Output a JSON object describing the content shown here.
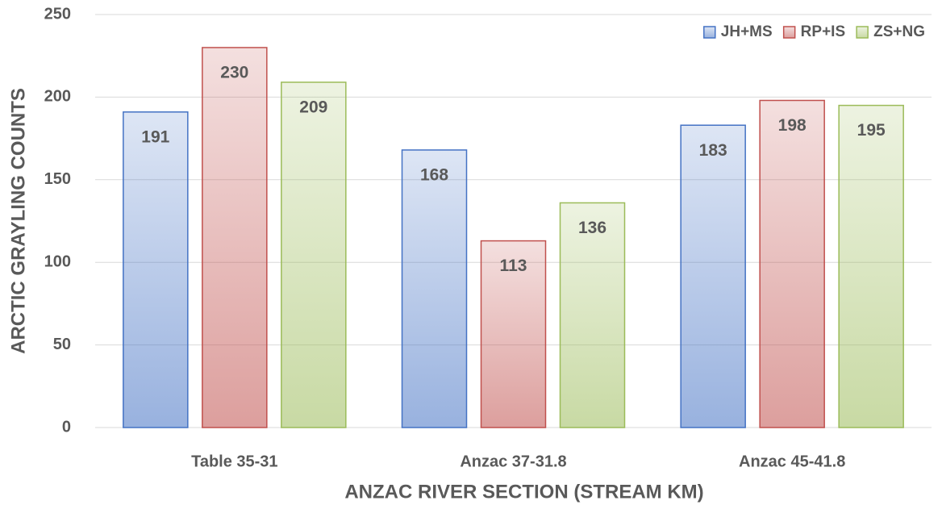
{
  "chart_data": {
    "type": "bar",
    "x_label": "ANZAC RIVER SECTION (STREAM KM)",
    "y_label": "ARCTIC GRAYLING COUNTS",
    "categories": [
      "Table 35-31",
      "Anzac 37-31.8",
      "Anzac 45-41.8"
    ],
    "series": [
      {
        "name": "JH+MS",
        "color": "#4472c4",
        "values": [
          191,
          168,
          183
        ]
      },
      {
        "name": "RP+IS",
        "color": "#c0504d",
        "values": [
          230,
          113,
          198
        ]
      },
      {
        "name": "ZS+NG",
        "color": "#9bbb59",
        "values": [
          209,
          136,
          195
        ]
      }
    ],
    "ylim": [
      0,
      250
    ],
    "yticks": [
      0,
      50,
      100,
      150,
      200,
      250
    ],
    "grid": true,
    "legend": "top-right",
    "data_labels": true
  }
}
